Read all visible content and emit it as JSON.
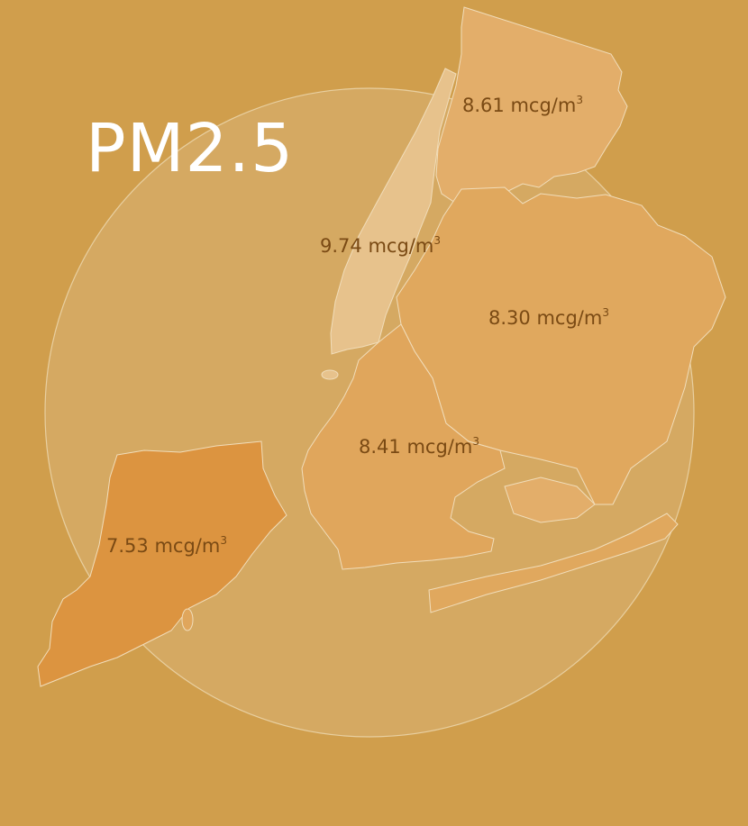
{
  "title": "PM2.5",
  "colors": {
    "background": "#D09E4C",
    "circle_fill": "#D5A962",
    "circle_stroke": "#E8CFA0",
    "manhattan": "#E7C28C",
    "bronx": "#E3AE6A",
    "queens": "#E0A85E",
    "brooklyn": "#E0A65C",
    "staten_island": "#DC9440",
    "label_text": "#7A4A14",
    "title_text": "#FFFFFF"
  },
  "boroughs": [
    {
      "id": "bronx",
      "value": "8.61",
      "unit": "mcg/m",
      "exponent": "3"
    },
    {
      "id": "manhattan",
      "value": "9.74",
      "unit": "mcg/m",
      "exponent": "3"
    },
    {
      "id": "queens",
      "value": "8.30",
      "unit": "mcg/m",
      "exponent": "3"
    },
    {
      "id": "brooklyn",
      "value": "8.41",
      "unit": "mcg/m",
      "exponent": "3"
    },
    {
      "id": "staten_island",
      "value": "7.53",
      "unit": "mcg/m",
      "exponent": "3"
    }
  ]
}
